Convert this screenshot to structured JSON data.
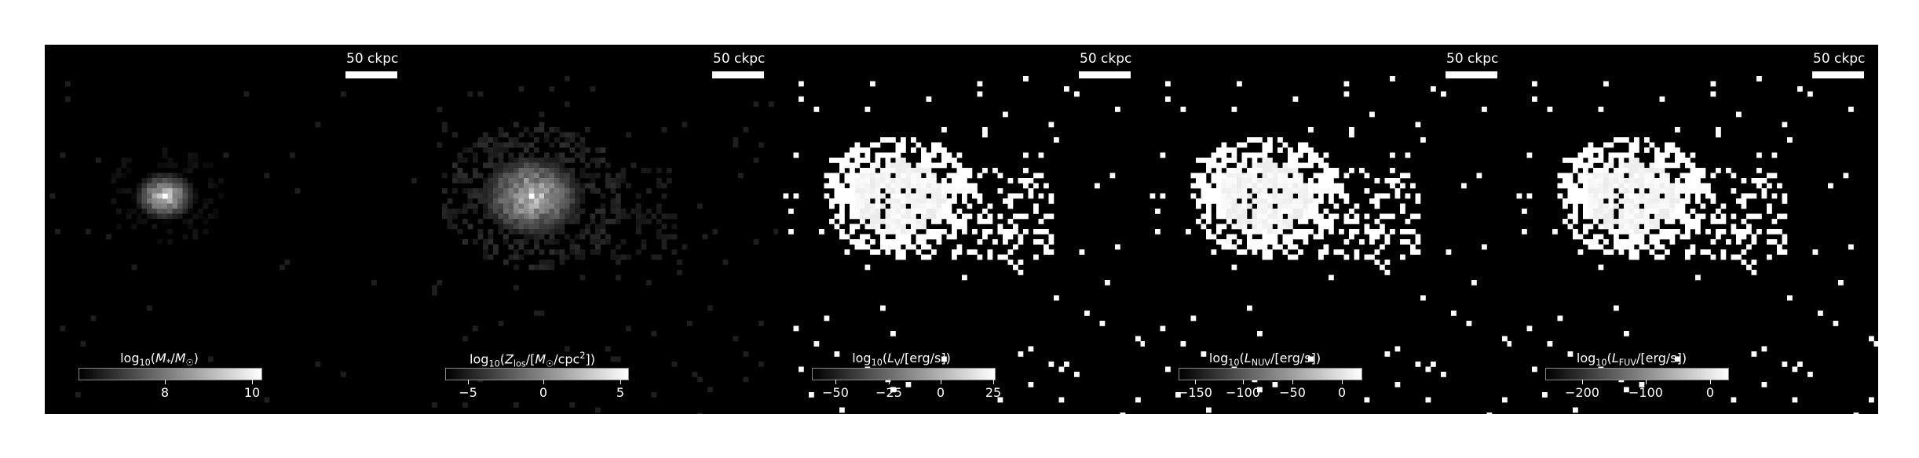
{
  "chart_data": [
    {
      "type": "heatmap",
      "scalebar": "50 ckpc",
      "colorbar": {
        "label_func": "log",
        "label_sub": "10",
        "label_body": "(M*/M☉)",
        "ticks": [
          "8",
          "10"
        ],
        "range": [
          6.0,
          10.2
        ]
      },
      "colormap": "gray",
      "peak_center": true,
      "pixel_pattern": "compact-core",
      "description_fields": []
    },
    {
      "type": "heatmap",
      "scalebar": "50 ckpc",
      "colorbar": {
        "label_func": "log",
        "label_sub": "10",
        "label_body": "(Zlos/[M☉/cpc²])",
        "ticks": [
          "−5",
          "0",
          "5"
        ],
        "range": [
          -7.0,
          5.0
        ]
      },
      "colormap": "gray",
      "peak_center": true,
      "pixel_pattern": "extended-core"
    },
    {
      "type": "heatmap",
      "scalebar": "50 ckpc",
      "colorbar": {
        "label_func": "log",
        "label_sub": "10",
        "label_body": "(LV/[erg/s])",
        "ticks": [
          "−50",
          "−25",
          "0",
          "25"
        ],
        "range": [
          -60.0,
          25.0
        ]
      },
      "colormap": "gray",
      "peak_center": true,
      "pixel_pattern": "saturated-scatter"
    },
    {
      "type": "heatmap",
      "scalebar": "50 ckpc",
      "colorbar": {
        "label_func": "log",
        "label_sub": "10",
        "label_body": "(LNUV/[erg/s])",
        "ticks": [
          "−150",
          "−100",
          "−50",
          "0"
        ],
        "range": [
          -175.0,
          10.0
        ]
      },
      "colormap": "gray",
      "peak_center": true,
      "pixel_pattern": "saturated-scatter"
    },
    {
      "type": "heatmap",
      "scalebar": "50 ckpc",
      "colorbar": {
        "label_func": "log",
        "label_sub": "10",
        "label_body": "(LFUV/[erg/s])",
        "ticks": [
          "−200",
          "−100",
          "0"
        ],
        "range": [
          -265.0,
          20.0
        ]
      },
      "colormap": "gray",
      "peak_center": true,
      "pixel_pattern": "saturated-scatter"
    }
  ],
  "labels": {
    "p0": {
      "fn": "log",
      "sub": "10",
      "open": "(",
      "main": "M",
      "mainsub": "*",
      "sep": "/",
      "main2": "M",
      "main2sub": "☉",
      "close": ")"
    },
    "p1": {
      "fn": "log",
      "sub": "10",
      "open": "(",
      "main": "Z",
      "mainsub": "los",
      "sep": "/[",
      "main2": "M",
      "main2sub": "☉",
      "tail": "/cpc",
      "tailsup": "2",
      "close": "])"
    },
    "p2": {
      "fn": "log",
      "sub": "10",
      "open": "(",
      "main": "L",
      "mainsub": "V",
      "close": "/[erg/s])"
    },
    "p3": {
      "fn": "log",
      "sub": "10",
      "open": "(",
      "main": "L",
      "mainsub": "NUV",
      "close": "/[erg/s])"
    },
    "p4": {
      "fn": "log",
      "sub": "10",
      "open": "(",
      "main": "L",
      "mainsub": "FUV",
      "close": "/[erg/s])"
    }
  }
}
